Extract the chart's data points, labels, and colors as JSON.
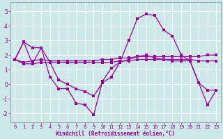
{
  "xlabel": "Windchill (Refroidissement éolien,°C)",
  "background_color": "#cce8e8",
  "grid_color": "#ffffff",
  "line_color": "#990099",
  "xlim": [
    -0.5,
    23.5
  ],
  "ylim": [
    -2.6,
    5.6
  ],
  "yticks": [
    -2,
    -1,
    0,
    1,
    2,
    3,
    4,
    5
  ],
  "xticks": [
    0,
    1,
    2,
    3,
    4,
    5,
    6,
    7,
    8,
    9,
    10,
    11,
    12,
    13,
    14,
    15,
    16,
    17,
    18,
    19,
    20,
    21,
    22,
    23
  ],
  "line1_y": [
    1.7,
    2.9,
    1.4,
    2.5,
    0.5,
    -0.3,
    -0.3,
    -1.3,
    -1.4,
    -2.1,
    0.2,
    1.1,
    1.5,
    3.0,
    4.5,
    4.8,
    4.7,
    3.7,
    3.3,
    2.0,
    1.6,
    0.1,
    -1.4,
    -0.4
  ],
  "line2_y": [
    1.7,
    1.4,
    1.4,
    1.5,
    1.5,
    1.5,
    1.5,
    1.5,
    1.5,
    1.5,
    1.5,
    1.5,
    1.6,
    1.6,
    1.7,
    1.7,
    1.7,
    1.7,
    1.7,
    1.7,
    1.7,
    1.6,
    1.6,
    1.6
  ],
  "line3_y": [
    1.7,
    1.5,
    1.6,
    1.7,
    1.6,
    1.6,
    1.6,
    1.6,
    1.6,
    1.6,
    1.7,
    1.7,
    1.8,
    1.8,
    1.9,
    1.9,
    1.9,
    1.9,
    1.9,
    1.9,
    1.9,
    1.9,
    2.0,
    2.0
  ],
  "line4_y": [
    1.7,
    2.9,
    2.5,
    2.5,
    1.5,
    0.3,
    0.0,
    -0.3,
    -0.5,
    -0.8,
    0.1,
    0.5,
    1.5,
    1.7,
    1.9,
    2.0,
    1.8,
    1.7,
    1.6,
    1.6,
    1.6,
    0.1,
    -0.4,
    -0.4
  ]
}
